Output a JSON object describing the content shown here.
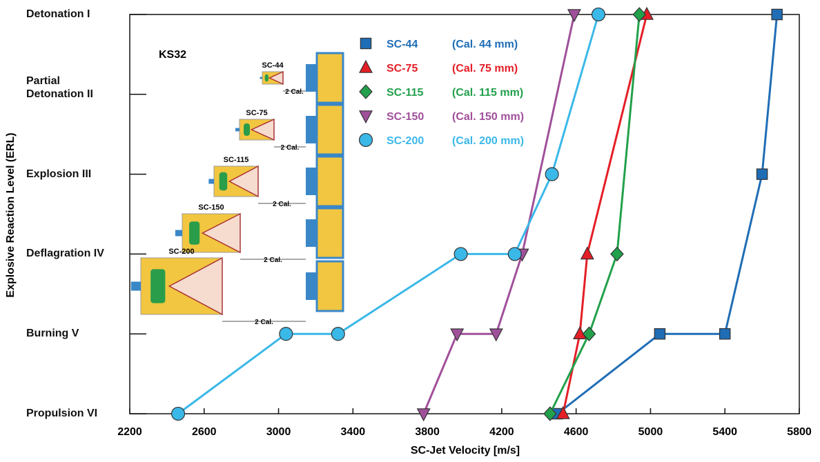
{
  "chart_data": {
    "type": "line",
    "x_label": "SC-Jet Velocity [m/s]",
    "y_label": "Explosive Reaction Level (ERL)",
    "xlim": [
      2200,
      5800
    ],
    "xticks": [
      2200,
      2600,
      3000,
      3400,
      3800,
      4200,
      4600,
      5000,
      5400,
      5800
    ],
    "ylim": [
      6,
      1
    ],
    "yticks": [
      {
        "value": 1,
        "label": "Detonation I"
      },
      {
        "value": 2,
        "label": "Partial\nDetonation II"
      },
      {
        "value": 3,
        "label": "Explosion III"
      },
      {
        "value": 4,
        "label": "Deflagration IV"
      },
      {
        "value": 5,
        "label": "Burning V"
      },
      {
        "value": 6,
        "label": "Propulsion VI"
      }
    ],
    "annotation": "KS32",
    "insets": {
      "labels": [
        "SC-44",
        "SC-75",
        "SC-115",
        "SC-150",
        "SC-200"
      ],
      "spacing_label": "2 Cal."
    },
    "series": [
      {
        "name": "SC-44",
        "caption": "(Cal. 44 mm)",
        "color": "#1f6db5",
        "marker": "square",
        "x": [
          4500,
          5050,
          5400,
          5600,
          5680
        ],
        "values": [
          6,
          5,
          5,
          3,
          1
        ]
      },
      {
        "name": "SC-75",
        "caption": "(Cal. 75 mm)",
        "color": "#e41e26",
        "marker": "triangle",
        "x": [
          4530,
          4620,
          4660,
          4980
        ],
        "values": [
          6,
          5,
          4,
          1
        ]
      },
      {
        "name": "SC-115",
        "caption": "(Cal. 115 mm)",
        "color": "#22a04b",
        "marker": "diamond",
        "x": [
          4460,
          4670,
          4820,
          4940
        ],
        "values": [
          6,
          5,
          4,
          1
        ]
      },
      {
        "name": "SC-150",
        "caption": "(Cal. 150 mm)",
        "color": "#a0509a",
        "marker": "triangle-down",
        "x": [
          3780,
          3960,
          4170,
          4310,
          4590
        ],
        "values": [
          6,
          5,
          5,
          4,
          1
        ]
      },
      {
        "name": "SC-200",
        "caption": "(Cal. 200 mm)",
        "color": "#3ab8e8",
        "marker": "circle",
        "x": [
          2460,
          3040,
          3320,
          3980,
          4270,
          4470,
          4720
        ],
        "values": [
          6,
          5,
          5,
          4,
          4,
          3,
          1
        ]
      }
    ]
  }
}
